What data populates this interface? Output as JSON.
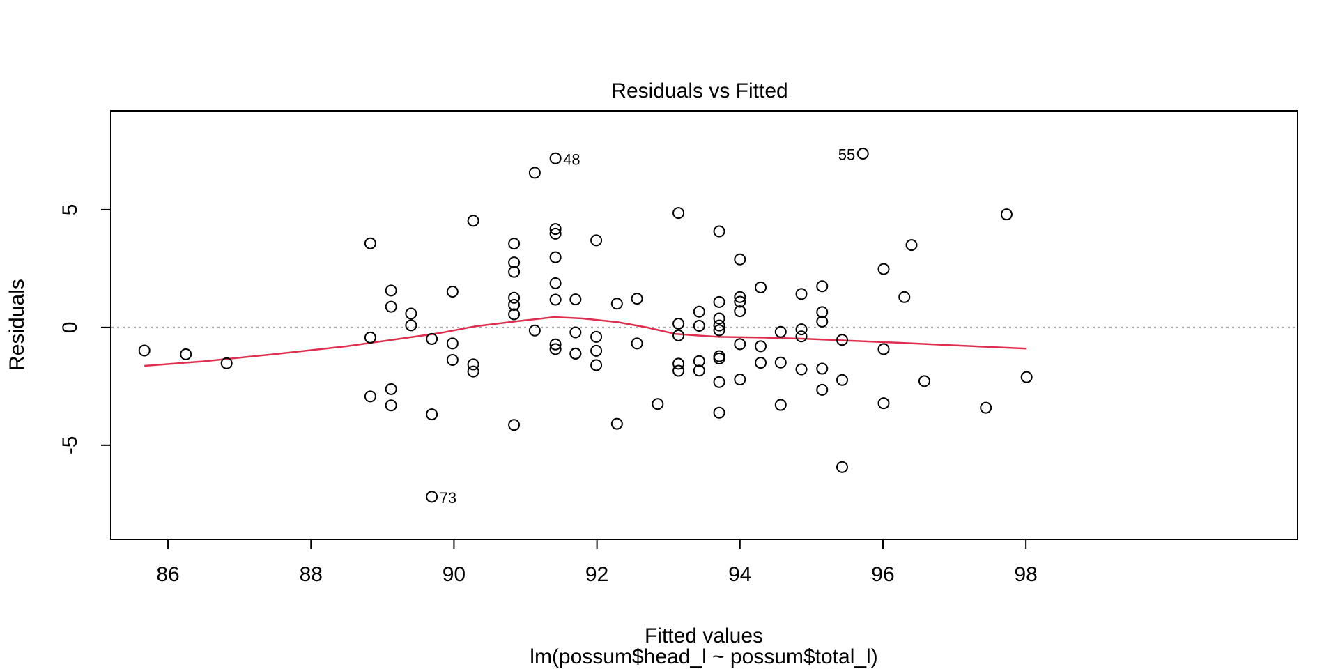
{
  "chart_data": {
    "type": "scatter",
    "title": "Residuals vs Fitted",
    "xlabel": "Fitted values",
    "subtitle": "lm(possum$head_l ~ possum$total_l)",
    "ylabel": "Residuals",
    "xlim": [
      85.2,
      101.8
    ],
    "ylim": [
      -9.0,
      9.2
    ],
    "x_ticks": [
      86,
      88,
      90,
      92,
      94,
      96,
      98
    ],
    "x_tick_labels": [
      "86",
      "88",
      "90",
      "92",
      "94",
      "96",
      "98"
    ],
    "y_ticks": [
      -5,
      0,
      5
    ],
    "y_tick_labels": [
      "-5",
      "0",
      "5"
    ],
    "reference_line": {
      "y": 0,
      "style": "dotted",
      "color": "#a6a6a6"
    },
    "smoother_color": "#df2f4f",
    "points": [
      {
        "x": 85.67,
        "y": -0.98
      },
      {
        "x": 86.25,
        "y": -1.14
      },
      {
        "x": 86.82,
        "y": -1.52
      },
      {
        "x": 88.83,
        "y": 3.57
      },
      {
        "x": 88.83,
        "y": -0.43
      },
      {
        "x": 88.83,
        "y": -2.93
      },
      {
        "x": 89.12,
        "y": 1.57
      },
      {
        "x": 89.12,
        "y": 0.88
      },
      {
        "x": 89.12,
        "y": -2.62
      },
      {
        "x": 89.12,
        "y": -3.31
      },
      {
        "x": 89.4,
        "y": 0.59
      },
      {
        "x": 89.4,
        "y": 0.09
      },
      {
        "x": 89.69,
        "y": -0.49
      },
      {
        "x": 89.69,
        "y": -3.69
      },
      {
        "x": 89.69,
        "y": -7.19
      },
      {
        "x": 89.98,
        "y": 1.52
      },
      {
        "x": 89.98,
        "y": -0.68
      },
      {
        "x": 89.98,
        "y": -1.38
      },
      {
        "x": 90.27,
        "y": 4.53
      },
      {
        "x": 90.27,
        "y": -1.57
      },
      {
        "x": 90.27,
        "y": -1.87
      },
      {
        "x": 90.84,
        "y": 3.56
      },
      {
        "x": 90.84,
        "y": 2.76
      },
      {
        "x": 90.84,
        "y": 2.36
      },
      {
        "x": 90.84,
        "y": 1.26
      },
      {
        "x": 90.84,
        "y": 0.96
      },
      {
        "x": 90.84,
        "y": 0.56
      },
      {
        "x": 90.84,
        "y": -4.14
      },
      {
        "x": 91.13,
        "y": 6.57
      },
      {
        "x": 91.13,
        "y": -0.13
      },
      {
        "x": 91.42,
        "y": 7.18
      },
      {
        "x": 91.42,
        "y": 4.18
      },
      {
        "x": 91.42,
        "y": 3.98
      },
      {
        "x": 91.42,
        "y": 2.98
      },
      {
        "x": 91.42,
        "y": 1.88
      },
      {
        "x": 91.42,
        "y": 1.18
      },
      {
        "x": 91.42,
        "y": -0.72
      },
      {
        "x": 91.42,
        "y": -0.92
      },
      {
        "x": 91.7,
        "y": 1.19
      },
      {
        "x": 91.7,
        "y": -0.21
      },
      {
        "x": 91.7,
        "y": -1.11
      },
      {
        "x": 91.7,
        "y": -1.11
      },
      {
        "x": 91.99,
        "y": 3.7
      },
      {
        "x": 91.99,
        "y": -0.4
      },
      {
        "x": 91.99,
        "y": -0.99
      },
      {
        "x": 91.99,
        "y": -1.6
      },
      {
        "x": 92.28,
        "y": 1.01
      },
      {
        "x": 92.28,
        "y": -4.09
      },
      {
        "x": 92.56,
        "y": 1.22
      },
      {
        "x": 92.56,
        "y": -0.68
      },
      {
        "x": 92.85,
        "y": -3.25
      },
      {
        "x": 93.14,
        "y": 4.86
      },
      {
        "x": 93.14,
        "y": 0.16
      },
      {
        "x": 93.14,
        "y": -0.34
      },
      {
        "x": 93.14,
        "y": -1.54
      },
      {
        "x": 93.14,
        "y": -1.84
      },
      {
        "x": 93.43,
        "y": 0.67
      },
      {
        "x": 93.43,
        "y": 0.07
      },
      {
        "x": 93.43,
        "y": -1.43
      },
      {
        "x": 93.43,
        "y": -1.83
      },
      {
        "x": 93.71,
        "y": 4.08
      },
      {
        "x": 93.71,
        "y": 1.08
      },
      {
        "x": 93.71,
        "y": 0.38
      },
      {
        "x": 93.71,
        "y": 0.08
      },
      {
        "x": 93.71,
        "y": -0.12
      },
      {
        "x": 93.71,
        "y": -1.22
      },
      {
        "x": 93.71,
        "y": -1.32
      },
      {
        "x": 93.71,
        "y": -2.32
      },
      {
        "x": 93.71,
        "y": -3.62
      },
      {
        "x": 94.0,
        "y": 2.89
      },
      {
        "x": 94.0,
        "y": 1.29
      },
      {
        "x": 94.0,
        "y": 1.09
      },
      {
        "x": 94.0,
        "y": 0.69
      },
      {
        "x": 94.0,
        "y": -0.71
      },
      {
        "x": 94.0,
        "y": -2.21
      },
      {
        "x": 94.29,
        "y": 1.7
      },
      {
        "x": 94.29,
        "y": -0.8
      },
      {
        "x": 94.29,
        "y": -1.5
      },
      {
        "x": 94.57,
        "y": -0.19
      },
      {
        "x": 94.57,
        "y": -1.49
      },
      {
        "x": 94.57,
        "y": -3.29
      },
      {
        "x": 94.86,
        "y": 1.42
      },
      {
        "x": 94.86,
        "y": -0.08
      },
      {
        "x": 94.86,
        "y": -0.38
      },
      {
        "x": 94.86,
        "y": -1.78
      },
      {
        "x": 95.15,
        "y": 1.75
      },
      {
        "x": 95.15,
        "y": 0.65
      },
      {
        "x": 95.15,
        "y": 0.25
      },
      {
        "x": 95.15,
        "y": -1.75
      },
      {
        "x": 95.15,
        "y": -2.65
      },
      {
        "x": 95.43,
        "y": -0.53
      },
      {
        "x": 95.43,
        "y": -2.23
      },
      {
        "x": 95.43,
        "y": -5.93
      },
      {
        "x": 95.72,
        "y": 7.38
      },
      {
        "x": 96.01,
        "y": 2.48
      },
      {
        "x": 96.01,
        "y": -0.92
      },
      {
        "x": 96.01,
        "y": -3.22
      },
      {
        "x": 96.3,
        "y": 1.29
      },
      {
        "x": 96.4,
        "y": 3.5
      },
      {
        "x": 96.58,
        "y": -2.28
      },
      {
        "x": 97.44,
        "y": -3.41
      },
      {
        "x": 97.73,
        "y": 4.8
      },
      {
        "x": 98.01,
        "y": -2.11
      }
    ],
    "annotations": [
      {
        "label": "48",
        "x": 91.42,
        "y": 7.18,
        "side": "right"
      },
      {
        "label": "55",
        "x": 95.72,
        "y": 7.38,
        "side": "left"
      },
      {
        "label": "73",
        "x": 89.69,
        "y": -7.19,
        "side": "right"
      }
    ],
    "smoother": [
      {
        "x": 85.67,
        "y": -1.63
      },
      {
        "x": 86.5,
        "y": -1.44
      },
      {
        "x": 87.5,
        "y": -1.13
      },
      {
        "x": 88.5,
        "y": -0.8
      },
      {
        "x": 89.2,
        "y": -0.5
      },
      {
        "x": 89.8,
        "y": -0.24
      },
      {
        "x": 90.3,
        "y": 0.05
      },
      {
        "x": 90.9,
        "y": 0.27
      },
      {
        "x": 91.4,
        "y": 0.44
      },
      {
        "x": 91.8,
        "y": 0.38
      },
      {
        "x": 92.3,
        "y": 0.22
      },
      {
        "x": 92.7,
        "y": 0.0
      },
      {
        "x": 93.1,
        "y": -0.28
      },
      {
        "x": 93.7,
        "y": -0.4
      },
      {
        "x": 94.3,
        "y": -0.43
      },
      {
        "x": 94.9,
        "y": -0.48
      },
      {
        "x": 95.5,
        "y": -0.56
      },
      {
        "x": 96.2,
        "y": -0.65
      },
      {
        "x": 97.0,
        "y": -0.76
      },
      {
        "x": 98.01,
        "y": -0.9
      }
    ]
  }
}
